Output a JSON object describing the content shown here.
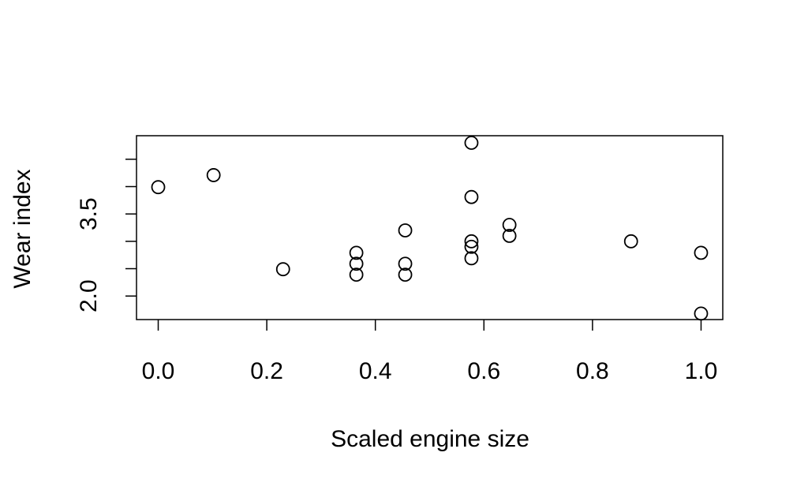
{
  "chart_data": {
    "type": "scatter",
    "xlabel": "Scaled engine size",
    "ylabel": "Wear index",
    "x": [
      0.0,
      0.102,
      0.23,
      0.365,
      0.365,
      0.365,
      0.455,
      0.455,
      0.455,
      0.577,
      0.577,
      0.577,
      0.577,
      0.577,
      0.647,
      0.647,
      0.871,
      1.0,
      1.0
    ],
    "series": [
      {
        "values": [
          3.99,
          4.21,
          2.49,
          2.79,
          2.59,
          2.39,
          3.2,
          2.59,
          2.39,
          4.8,
          3.81,
          3.0,
          2.9,
          2.69,
          3.3,
          3.1,
          3.0,
          2.79,
          1.68
        ],
        "color": "#000000"
      }
    ],
    "xlim": [
      -0.04,
      1.04
    ],
    "ylim": [
      1.57,
      4.93
    ],
    "xticks": [
      {
        "value": 0,
        "label": "0.0"
      },
      0.2,
      0.4,
      0.6,
      0.8,
      {
        "value": 1,
        "label": "1.0"
      }
    ],
    "yticks": [
      {
        "value": 2,
        "label": "2.0"
      },
      {
        "value": 2.5,
        "label": null
      },
      {
        "value": 3,
        "label": null
      },
      3.5,
      {
        "value": 4,
        "label": null
      },
      {
        "value": 4.5,
        "label": null
      }
    ]
  }
}
